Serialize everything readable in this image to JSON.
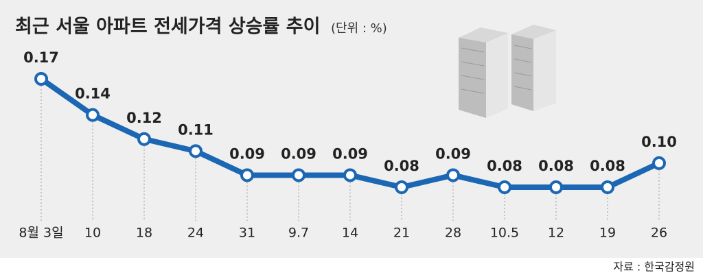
{
  "chart_data": {
    "type": "line",
    "title": "최근 서울 아파트 전세가격 상승률 추이",
    "subtitle": "(단위 : %)",
    "source": "자료 : 한국감정원",
    "categories": [
      "8월 3일",
      "10",
      "18",
      "24",
      "31",
      "9.7",
      "14",
      "21",
      "28",
      "10.5",
      "12",
      "19",
      "26"
    ],
    "values": [
      0.17,
      0.14,
      0.12,
      0.11,
      0.09,
      0.09,
      0.09,
      0.08,
      0.09,
      0.08,
      0.08,
      0.08,
      0.1
    ],
    "value_labels": [
      "0.17",
      "0.14",
      "0.12",
      "0.11",
      "0.09",
      "0.09",
      "0.09",
      "0.08",
      "0.09",
      "0.08",
      "0.08",
      "0.08",
      "0.10"
    ],
    "color": "#1b67b3"
  }
}
